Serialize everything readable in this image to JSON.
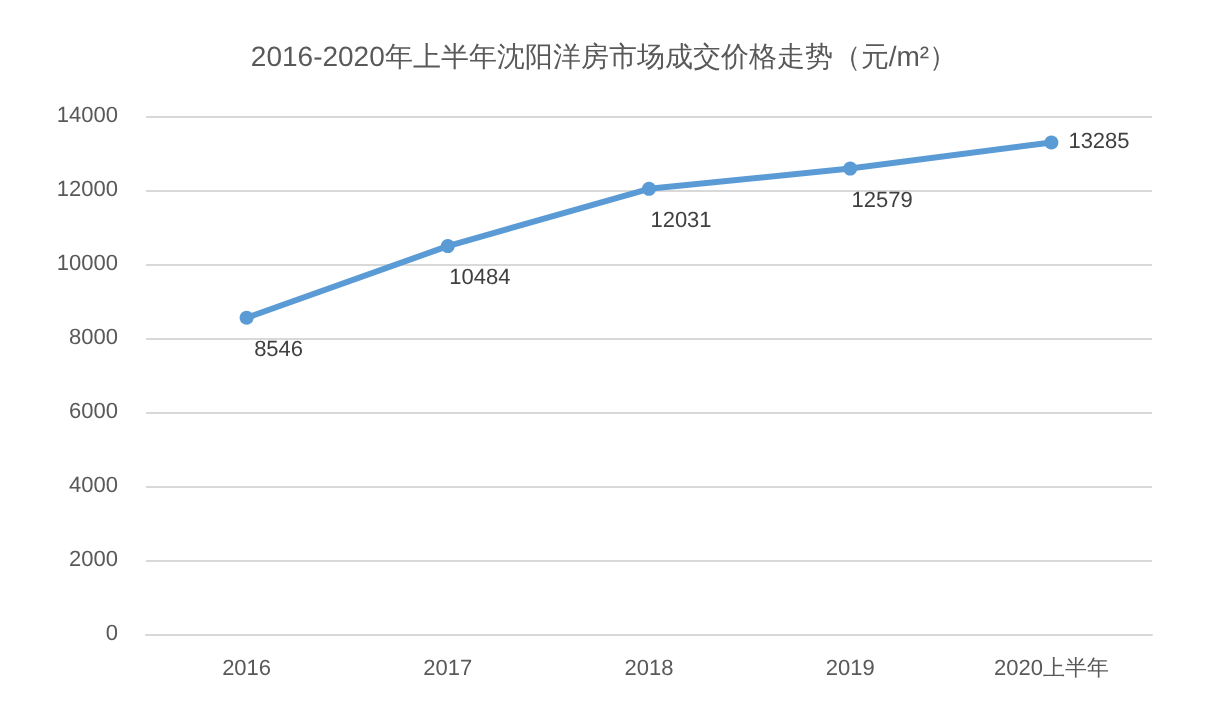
{
  "chart_data": {
    "type": "line",
    "title": "2016-2020年上半年沈阳洋房市场成交价格走势（元/m²）",
    "categories": [
      "2016",
      "2017",
      "2018",
      "2019",
      "2020上半年"
    ],
    "series": [
      {
        "color": "#5b9bd5",
        "values": [
          8546,
          10484,
          12031,
          12579,
          13285
        ]
      }
    ],
    "ylim": [
      0,
      14000
    ],
    "yticks": [
      0,
      2000,
      4000,
      6000,
      8000,
      10000,
      12000,
      14000
    ],
    "grid": "y",
    "marker": "circle",
    "line_style": "solid",
    "data_labels": true
  }
}
